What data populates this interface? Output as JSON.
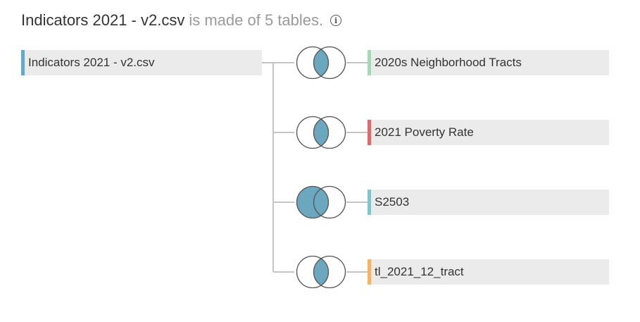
{
  "header": {
    "source_name": "Indicators 2021 - v2.csv",
    "description": "is made of 5 tables.",
    "info_icon": "i"
  },
  "primary_table": {
    "name": "Indicators 2021 - v2.csv",
    "color": "#6aa6c6"
  },
  "related_tables": [
    {
      "name": "2020s Neighborhood Tracts",
      "color": "#a9d6b4",
      "join_type": "inner"
    },
    {
      "name": "2021 Poverty Rate",
      "color": "#d96c6c",
      "join_type": "inner"
    },
    {
      "name": "S2503",
      "color": "#82c4c9",
      "join_type": "left"
    },
    {
      "name": "tl_2021_12_tract",
      "color": "#f2b56a",
      "join_type": "inner"
    }
  ],
  "colors": {
    "join_fill": "#6ba8c0",
    "line": "#c4c4c4",
    "circle_stroke": "#555555"
  }
}
